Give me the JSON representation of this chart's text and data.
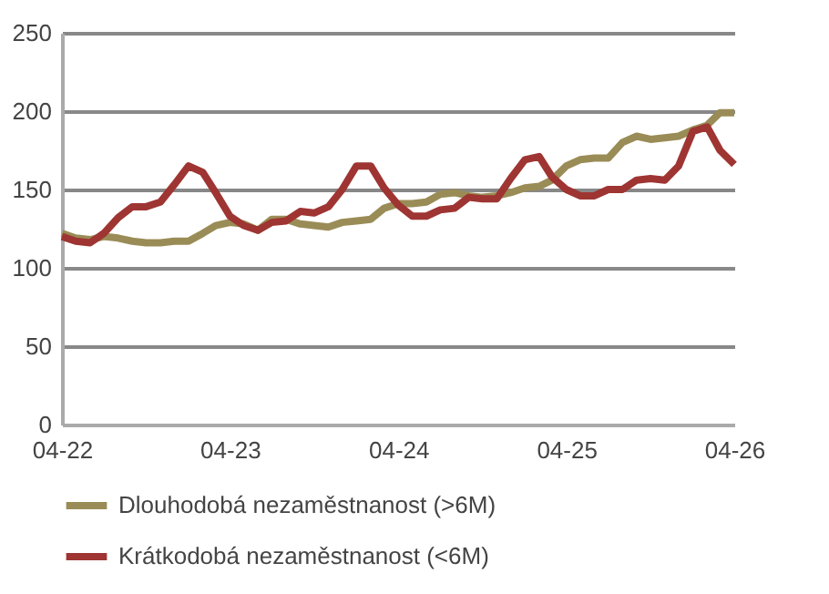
{
  "chart_data": {
    "type": "line",
    "x": [
      "2022-04",
      "2022-05",
      "2022-06",
      "2022-07",
      "2022-08",
      "2022-09",
      "2022-10",
      "2022-11",
      "2022-12",
      "2023-01",
      "2023-02",
      "2023-03",
      "2023-04",
      "2023-05",
      "2023-06",
      "2023-07",
      "2023-08",
      "2023-09",
      "2023-10",
      "2023-11",
      "2023-12",
      "2024-01",
      "2024-02",
      "2024-03",
      "2024-04",
      "2024-05",
      "2024-06",
      "2024-07",
      "2024-08",
      "2024-09",
      "2024-10",
      "2024-11",
      "2024-12",
      "2025-01",
      "2025-02",
      "2025-03",
      "2025-04",
      "2025-05",
      "2025-06",
      "2025-07",
      "2025-08",
      "2025-09",
      "2025-10",
      "2025-11",
      "2025-12",
      "2026-01",
      "2026-02",
      "2026-03",
      "2026-04"
    ],
    "series": [
      {
        "name": "Dlouhodobá nezaměstnanost (>6M)",
        "color": "#9a8c56",
        "values": [
          122,
          119,
          118,
          120,
          119,
          117,
          116,
          116,
          117,
          117,
          122,
          127,
          129,
          128,
          124,
          131,
          131,
          128,
          127,
          126,
          129,
          130,
          131,
          138,
          141,
          141,
          142,
          147,
          148,
          146,
          145,
          146,
          148,
          151,
          152,
          156,
          165,
          169,
          170,
          170,
          180,
          184,
          182,
          183,
          184,
          188,
          191,
          199,
          199
        ]
      },
      {
        "name": "Krátkodobá nezaměstnanost (<6M)",
        "color": "#9e3532",
        "values": [
          120,
          117,
          116,
          122,
          132,
          139,
          139,
          142,
          153,
          165,
          161,
          148,
          133,
          127,
          124,
          129,
          130,
          136,
          135,
          139,
          150,
          165,
          165,
          151,
          140,
          133,
          133,
          137,
          138,
          145,
          144,
          144,
          157,
          169,
          171,
          158,
          150,
          146,
          146,
          150,
          150,
          156,
          157,
          156,
          165,
          187,
          190,
          175,
          166
        ]
      }
    ],
    "xlim": [
      "2022-04",
      "2026-04"
    ],
    "xticks": [
      {
        "value": "2022-04",
        "label": "04-22"
      },
      {
        "value": "2023-04",
        "label": "04-23"
      },
      {
        "value": "2024-04",
        "label": "04-24"
      },
      {
        "value": "2025-04",
        "label": "04-25"
      },
      {
        "value": "2026-04",
        "label": "04-26"
      }
    ],
    "ylim": [
      0,
      250
    ],
    "yticks": [
      0,
      50,
      100,
      150,
      200,
      250
    ],
    "grid": "y",
    "legend": "bottom",
    "line_style": "solid",
    "marker": "none"
  }
}
